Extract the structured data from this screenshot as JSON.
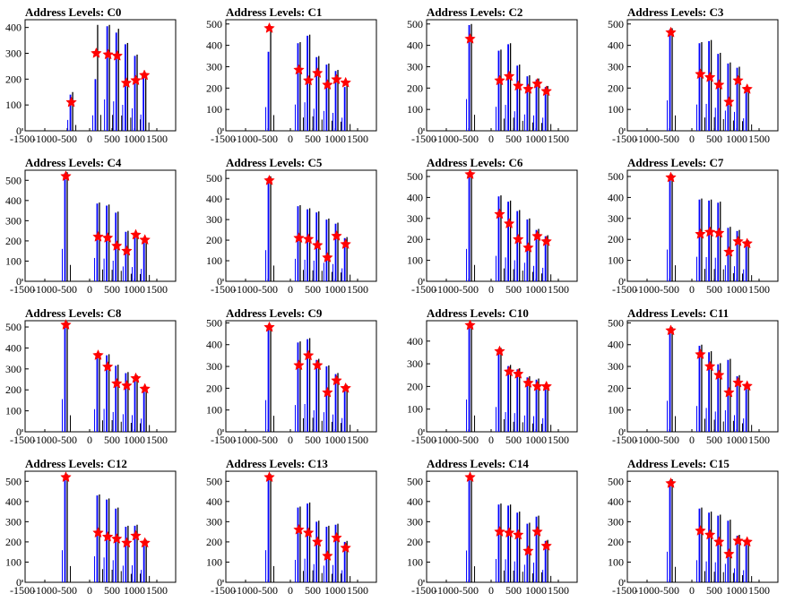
{
  "colors": {
    "background": "#ffffff",
    "axes": "#000000",
    "histogram_black": "#000000",
    "histogram_blue": "#0000ff",
    "marker": "#ff0000"
  },
  "chart_data": [
    {
      "type": "bar",
      "title": "Address Levels: C0",
      "xlim": [
        -1500,
        1500
      ],
      "ylim": [
        0,
        430
      ],
      "yticks": [
        0,
        100,
        200,
        300,
        400
      ],
      "xticks": [
        "-1500",
        "-1000",
        "-500",
        "0",
        "500",
        "1000",
        "1500"
      ],
      "peaks": [
        {
          "x": -640,
          "black": 150,
          "blue": 140,
          "marker": 110
        },
        {
          "x": -90,
          "black": 410,
          "blue": 200,
          "marker": 300
        },
        {
          "x": 170,
          "black": 410,
          "blue": 405,
          "marker": 295
        },
        {
          "x": 370,
          "black": 395,
          "blue": 380,
          "marker": 290
        },
        {
          "x": 570,
          "black": 340,
          "blue": 335,
          "marker": 185
        },
        {
          "x": 780,
          "black": 295,
          "blue": 290,
          "marker": 195
        },
        {
          "x": 970,
          "black": 215,
          "blue": 210,
          "marker": 215
        }
      ]
    },
    {
      "type": "bar",
      "title": "Address Levels: C1",
      "xlim": [
        -1500,
        1500
      ],
      "ylim": [
        0,
        520
      ],
      "yticks": [
        0,
        100,
        200,
        300,
        400,
        500
      ],
      "xticks": [
        "-1500",
        "-1000",
        "-500",
        "0",
        "500",
        "1000",
        "1500"
      ],
      "peaks": [
        {
          "x": -700,
          "black": 490,
          "blue": 370,
          "marker": 480
        },
        {
          "x": -50,
          "black": 415,
          "blue": 410,
          "marker": 285
        },
        {
          "x": 160,
          "black": 450,
          "blue": 445,
          "marker": 235
        },
        {
          "x": 360,
          "black": 350,
          "blue": 345,
          "marker": 270
        },
        {
          "x": 580,
          "black": 315,
          "blue": 310,
          "marker": 215
        },
        {
          "x": 780,
          "black": 285,
          "blue": 280,
          "marker": 240
        },
        {
          "x": 980,
          "black": 210,
          "blue": 205,
          "marker": 225
        }
      ]
    },
    {
      "type": "bar",
      "title": "Address Levels: C2",
      "xlim": [
        -1500,
        1500
      ],
      "ylim": [
        0,
        520
      ],
      "yticks": [
        0,
        100,
        200,
        300,
        400,
        500
      ],
      "xticks": [
        "-1500",
        "-1000",
        "-500",
        "0",
        "500",
        "1000",
        "1500"
      ],
      "peaks": [
        {
          "x": -700,
          "black": 500,
          "blue": 495,
          "marker": 430
        },
        {
          "x": -50,
          "black": 380,
          "blue": 375,
          "marker": 235
        },
        {
          "x": 160,
          "black": 410,
          "blue": 405,
          "marker": 255
        },
        {
          "x": 360,
          "black": 310,
          "blue": 305,
          "marker": 210
        },
        {
          "x": 580,
          "black": 260,
          "blue": 255,
          "marker": 195
        },
        {
          "x": 780,
          "black": 245,
          "blue": 240,
          "marker": 220
        },
        {
          "x": 980,
          "black": 210,
          "blue": 205,
          "marker": 185
        }
      ]
    },
    {
      "type": "bar",
      "title": "Address Levels: C3",
      "xlim": [
        -1500,
        1500
      ],
      "ylim": [
        0,
        520
      ],
      "yticks": [
        0,
        100,
        200,
        300,
        400,
        500
      ],
      "xticks": [
        "-1500",
        "-1000",
        "-500",
        "0",
        "500",
        "1000",
        "1500"
      ],
      "peaks": [
        {
          "x": -700,
          "black": 480,
          "blue": 475,
          "marker": 460
        },
        {
          "x": -50,
          "black": 415,
          "blue": 410,
          "marker": 265
        },
        {
          "x": 160,
          "black": 425,
          "blue": 420,
          "marker": 250
        },
        {
          "x": 360,
          "black": 365,
          "blue": 360,
          "marker": 215
        },
        {
          "x": 580,
          "black": 320,
          "blue": 315,
          "marker": 135
        },
        {
          "x": 780,
          "black": 300,
          "blue": 295,
          "marker": 235
        },
        {
          "x": 980,
          "black": 200,
          "blue": 195,
          "marker": 195
        }
      ]
    },
    {
      "type": "bar",
      "title": "Address Levels: C4",
      "xlim": [
        -1500,
        1500
      ],
      "ylim": [
        0,
        550
      ],
      "yticks": [
        0,
        100,
        200,
        300,
        400,
        500
      ],
      "xticks": [
        "-1500",
        "-1000",
        "-500",
        "0",
        "500",
        "1000",
        "1500"
      ],
      "peaks": [
        {
          "x": -760,
          "black": 540,
          "blue": 535,
          "marker": 520
        },
        {
          "x": -50,
          "black": 390,
          "blue": 385,
          "marker": 220
        },
        {
          "x": 160,
          "black": 380,
          "blue": 375,
          "marker": 215
        },
        {
          "x": 360,
          "black": 345,
          "blue": 340,
          "marker": 175
        },
        {
          "x": 580,
          "black": 250,
          "blue": 245,
          "marker": 150
        },
        {
          "x": 780,
          "black": 240,
          "blue": 235,
          "marker": 230
        },
        {
          "x": 980,
          "black": 210,
          "blue": 205,
          "marker": 205
        }
      ]
    },
    {
      "type": "bar",
      "title": "Address Levels: C5",
      "xlim": [
        -1500,
        1500
      ],
      "ylim": [
        0,
        540
      ],
      "yticks": [
        0,
        100,
        200,
        300,
        400,
        500
      ],
      "xticks": [
        "-1500",
        "-1000",
        "-500",
        "0",
        "500",
        "1000",
        "1500"
      ],
      "peaks": [
        {
          "x": -700,
          "black": 510,
          "blue": 505,
          "marker": 490
        },
        {
          "x": -50,
          "black": 370,
          "blue": 365,
          "marker": 210
        },
        {
          "x": 160,
          "black": 355,
          "blue": 350,
          "marker": 205
        },
        {
          "x": 360,
          "black": 340,
          "blue": 335,
          "marker": 175
        },
        {
          "x": 580,
          "black": 305,
          "blue": 300,
          "marker": 115
        },
        {
          "x": 780,
          "black": 285,
          "blue": 280,
          "marker": 220
        },
        {
          "x": 980,
          "black": 215,
          "blue": 210,
          "marker": 180
        }
      ]
    },
    {
      "type": "bar",
      "title": "Address Levels: C6",
      "xlim": [
        -1500,
        1500
      ],
      "ylim": [
        0,
        530
      ],
      "yticks": [
        0,
        100,
        200,
        300,
        400,
        500
      ],
      "xticks": [
        "-1500",
        "-1000",
        "-500",
        "0",
        "500",
        "1000",
        "1500"
      ],
      "peaks": [
        {
          "x": -700,
          "black": 520,
          "blue": 515,
          "marker": 510
        },
        {
          "x": -50,
          "black": 410,
          "blue": 405,
          "marker": 320
        },
        {
          "x": 160,
          "black": 385,
          "blue": 380,
          "marker": 275
        },
        {
          "x": 360,
          "black": 340,
          "blue": 335,
          "marker": 200
        },
        {
          "x": 580,
          "black": 300,
          "blue": 295,
          "marker": 160
        },
        {
          "x": 780,
          "black": 250,
          "blue": 245,
          "marker": 215
        },
        {
          "x": 980,
          "black": 220,
          "blue": 215,
          "marker": 190
        }
      ]
    },
    {
      "type": "bar",
      "title": "Address Levels: C7",
      "xlim": [
        -1500,
        1500
      ],
      "ylim": [
        0,
        530
      ],
      "yticks": [
        0,
        100,
        200,
        300,
        400,
        500
      ],
      "xticks": [
        "-1500",
        "-1000",
        "-500",
        "0",
        "500",
        "1000",
        "1500"
      ],
      "peaks": [
        {
          "x": -700,
          "black": 510,
          "blue": 505,
          "marker": 495
        },
        {
          "x": -50,
          "black": 395,
          "blue": 390,
          "marker": 225
        },
        {
          "x": 160,
          "black": 390,
          "blue": 385,
          "marker": 235
        },
        {
          "x": 360,
          "black": 380,
          "blue": 375,
          "marker": 230
        },
        {
          "x": 580,
          "black": 260,
          "blue": 255,
          "marker": 140
        },
        {
          "x": 780,
          "black": 245,
          "blue": 240,
          "marker": 190
        },
        {
          "x": 980,
          "black": 195,
          "blue": 190,
          "marker": 180
        }
      ]
    },
    {
      "type": "bar",
      "title": "Address Levels: C8",
      "xlim": [
        -1500,
        1500
      ],
      "ylim": [
        0,
        530
      ],
      "yticks": [
        0,
        100,
        200,
        300,
        400,
        500
      ],
      "xticks": [
        "-1500",
        "-1000",
        "-500",
        "0",
        "500",
        "1000",
        "1500"
      ],
      "peaks": [
        {
          "x": -760,
          "black": 525,
          "blue": 520,
          "marker": 510
        },
        {
          "x": -50,
          "black": 365,
          "blue": 360,
          "marker": 365
        },
        {
          "x": 160,
          "black": 370,
          "blue": 365,
          "marker": 310
        },
        {
          "x": 360,
          "black": 320,
          "blue": 315,
          "marker": 230
        },
        {
          "x": 580,
          "black": 285,
          "blue": 280,
          "marker": 220
        },
        {
          "x": 780,
          "black": 270,
          "blue": 265,
          "marker": 255
        },
        {
          "x": 980,
          "black": 215,
          "blue": 210,
          "marker": 205
        }
      ]
    },
    {
      "type": "bar",
      "title": "Address Levels: C9",
      "xlim": [
        -1500,
        1500
      ],
      "ylim": [
        0,
        510
      ],
      "yticks": [
        0,
        100,
        200,
        300,
        400,
        500
      ],
      "xticks": [
        "-1500",
        "-1000",
        "-500",
        "0",
        "500",
        "1000",
        "1500"
      ],
      "peaks": [
        {
          "x": -700,
          "black": 490,
          "blue": 485,
          "marker": 480
        },
        {
          "x": -50,
          "black": 415,
          "blue": 410,
          "marker": 305
        },
        {
          "x": 160,
          "black": 430,
          "blue": 425,
          "marker": 350
        },
        {
          "x": 360,
          "black": 335,
          "blue": 330,
          "marker": 305
        },
        {
          "x": 580,
          "black": 305,
          "blue": 300,
          "marker": 180
        },
        {
          "x": 780,
          "black": 270,
          "blue": 265,
          "marker": 235
        },
        {
          "x": 980,
          "black": 215,
          "blue": 210,
          "marker": 200
        }
      ]
    },
    {
      "type": "bar",
      "title": "Address Levels: C10",
      "xlim": [
        -1500,
        1500
      ],
      "ylim": [
        0,
        490
      ],
      "yticks": [
        0,
        100,
        200,
        300,
        400
      ],
      "xticks": [
        "-1500",
        "-1000",
        "-500",
        "0",
        "500",
        "1000",
        "1500"
      ],
      "peaks": [
        {
          "x": -700,
          "black": 480,
          "blue": 475,
          "marker": 470
        },
        {
          "x": -50,
          "black": 370,
          "blue": 365,
          "marker": 355
        },
        {
          "x": 160,
          "black": 295,
          "blue": 290,
          "marker": 265
        },
        {
          "x": 360,
          "black": 280,
          "blue": 275,
          "marker": 255
        },
        {
          "x": 580,
          "black": 245,
          "blue": 240,
          "marker": 215
        },
        {
          "x": 780,
          "black": 235,
          "blue": 230,
          "marker": 200
        },
        {
          "x": 980,
          "black": 205,
          "blue": 200,
          "marker": 200
        }
      ]
    },
    {
      "type": "bar",
      "title": "Address Levels: C11",
      "xlim": [
        -1500,
        1500
      ],
      "ylim": [
        0,
        510
      ],
      "yticks": [
        0,
        100,
        200,
        300,
        400,
        500
      ],
      "xticks": [
        "-1500",
        "-1000",
        "-500",
        "0",
        "500",
        "1000",
        "1500"
      ],
      "peaks": [
        {
          "x": -700,
          "black": 480,
          "blue": 475,
          "marker": 465
        },
        {
          "x": -50,
          "black": 400,
          "blue": 395,
          "marker": 355
        },
        {
          "x": 160,
          "black": 370,
          "blue": 365,
          "marker": 300
        },
        {
          "x": 360,
          "black": 315,
          "blue": 310,
          "marker": 260
        },
        {
          "x": 580,
          "black": 335,
          "blue": 330,
          "marker": 180
        },
        {
          "x": 780,
          "black": 260,
          "blue": 255,
          "marker": 225
        },
        {
          "x": 980,
          "black": 210,
          "blue": 205,
          "marker": 210
        }
      ]
    },
    {
      "type": "bar",
      "title": "Address Levels: C12",
      "xlim": [
        -1500,
        1500
      ],
      "ylim": [
        0,
        550
      ],
      "yticks": [
        0,
        100,
        200,
        300,
        400,
        500
      ],
      "xticks": [
        "-1500",
        "-1000",
        "-500",
        "0",
        "500",
        "1000",
        "1500"
      ],
      "peaks": [
        {
          "x": -760,
          "black": 535,
          "blue": 530,
          "marker": 520
        },
        {
          "x": -50,
          "black": 435,
          "blue": 430,
          "marker": 245
        },
        {
          "x": 160,
          "black": 415,
          "blue": 410,
          "marker": 225
        },
        {
          "x": 360,
          "black": 370,
          "blue": 365,
          "marker": 215
        },
        {
          "x": 580,
          "black": 280,
          "blue": 275,
          "marker": 195
        },
        {
          "x": 780,
          "black": 285,
          "blue": 280,
          "marker": 230
        },
        {
          "x": 980,
          "black": 210,
          "blue": 205,
          "marker": 195
        }
      ]
    },
    {
      "type": "bar",
      "title": "Address Levels: C13",
      "xlim": [
        -1500,
        1500
      ],
      "ylim": [
        0,
        550
      ],
      "yticks": [
        0,
        100,
        200,
        300,
        400,
        500
      ],
      "xticks": [
        "-1500",
        "-1000",
        "-500",
        "0",
        "500",
        "1000",
        "1500"
      ],
      "peaks": [
        {
          "x": -700,
          "black": 535,
          "blue": 530,
          "marker": 520
        },
        {
          "x": -50,
          "black": 375,
          "blue": 370,
          "marker": 260
        },
        {
          "x": 160,
          "black": 395,
          "blue": 390,
          "marker": 245
        },
        {
          "x": 360,
          "black": 305,
          "blue": 300,
          "marker": 200
        },
        {
          "x": 580,
          "black": 280,
          "blue": 275,
          "marker": 130
        },
        {
          "x": 780,
          "black": 290,
          "blue": 285,
          "marker": 220
        },
        {
          "x": 980,
          "black": 205,
          "blue": 200,
          "marker": 170
        }
      ]
    },
    {
      "type": "bar",
      "title": "Address Levels: C14",
      "xlim": [
        -1500,
        1500
      ],
      "ylim": [
        0,
        550
      ],
      "yticks": [
        0,
        100,
        200,
        300,
        400,
        500
      ],
      "xticks": [
        "-1500",
        "-1000",
        "-500",
        "0",
        "500",
        "1000",
        "1500"
      ],
      "peaks": [
        {
          "x": -700,
          "black": 530,
          "blue": 525,
          "marker": 520
        },
        {
          "x": -50,
          "black": 390,
          "blue": 385,
          "marker": 250
        },
        {
          "x": 160,
          "black": 385,
          "blue": 380,
          "marker": 245
        },
        {
          "x": 360,
          "black": 350,
          "blue": 345,
          "marker": 235
        },
        {
          "x": 580,
          "black": 295,
          "blue": 290,
          "marker": 155
        },
        {
          "x": 780,
          "black": 330,
          "blue": 325,
          "marker": 250
        },
        {
          "x": 980,
          "black": 210,
          "blue": 205,
          "marker": 180
        }
      ]
    },
    {
      "type": "bar",
      "title": "Address Levels: C15",
      "xlim": [
        -1500,
        1500
      ],
      "ylim": [
        0,
        550
      ],
      "yticks": [
        0,
        100,
        200,
        300,
        400,
        500
      ],
      "xticks": [
        "-1500",
        "-1000",
        "-500",
        "0",
        "500",
        "1000",
        "1500"
      ],
      "peaks": [
        {
          "x": -700,
          "black": 510,
          "blue": 505,
          "marker": 490
        },
        {
          "x": -50,
          "black": 370,
          "blue": 365,
          "marker": 255
        },
        {
          "x": 160,
          "black": 350,
          "blue": 345,
          "marker": 235
        },
        {
          "x": 360,
          "black": 335,
          "blue": 330,
          "marker": 200
        },
        {
          "x": 580,
          "black": 310,
          "blue": 305,
          "marker": 140
        },
        {
          "x": 780,
          "black": 235,
          "blue": 230,
          "marker": 205
        },
        {
          "x": 980,
          "black": 205,
          "blue": 200,
          "marker": 200
        }
      ]
    }
  ]
}
